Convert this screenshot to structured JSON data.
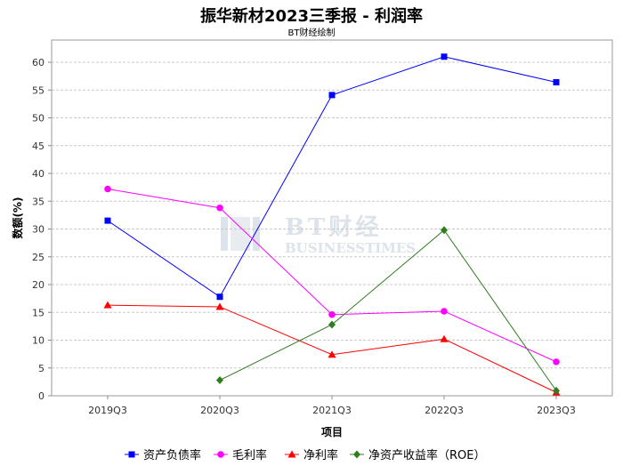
{
  "chart_data": {
    "type": "line",
    "title": "振华新材2023三季报 - 利润率",
    "subtitle": "BT财经绘制",
    "xlabel": "项目",
    "ylabel": "数额(%)",
    "categories": [
      "2019Q3",
      "2020Q3",
      "2021Q3",
      "2022Q3",
      "2023Q3"
    ],
    "ylim": [
      0,
      64
    ],
    "yticks": [
      0,
      5,
      10,
      15,
      20,
      25,
      30,
      35,
      40,
      45,
      50,
      55,
      60
    ],
    "grid": true,
    "legend_position": "bottom",
    "series": [
      {
        "name": "资产负债率",
        "color": "#0000ff",
        "marker": "square",
        "values": [
          31.5,
          17.8,
          54.1,
          61.0,
          56.4
        ]
      },
      {
        "name": "毛利率",
        "color": "#ff00ff",
        "marker": "circle",
        "values": [
          37.2,
          33.8,
          14.6,
          15.2,
          6.1
        ]
      },
      {
        "name": "净利率",
        "color": "#ff0000",
        "marker": "triangle",
        "values": [
          16.3,
          16.0,
          7.4,
          10.2,
          0.6
        ]
      },
      {
        "name": "净资产收益率（ROE）",
        "color": "#2e7d1e",
        "marker": "diamond",
        "values": [
          null,
          2.8,
          12.8,
          29.8,
          0.9
        ]
      }
    ]
  },
  "watermark": {
    "main": "BT财经",
    "sub": "BUSINESSTIMES"
  }
}
